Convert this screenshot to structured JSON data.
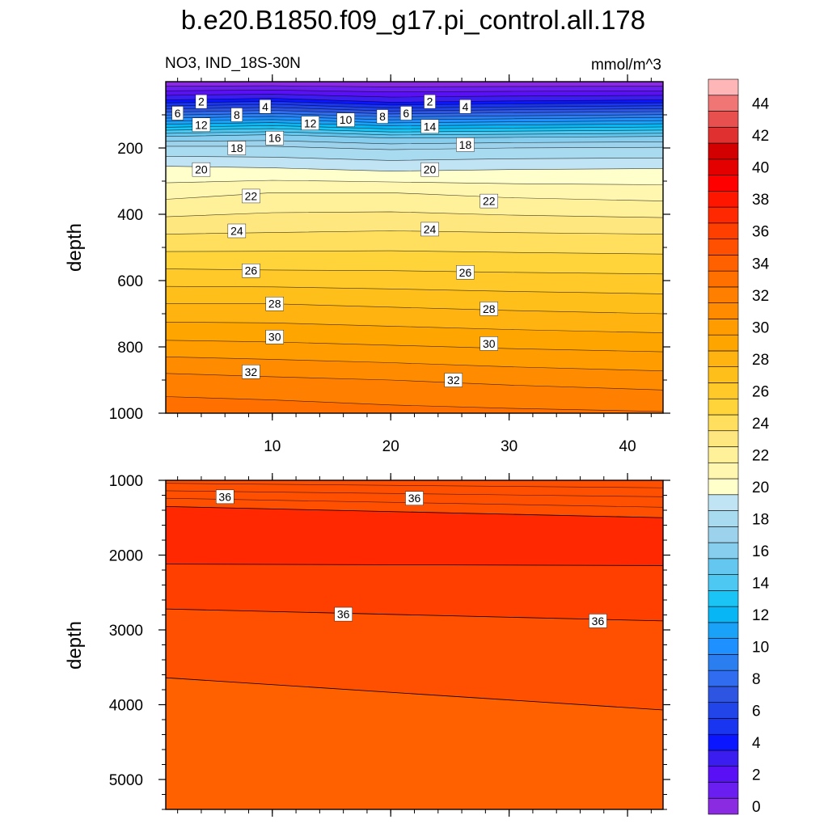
{
  "title": "b.e20.B1850.f09_g17.pi_control.all.178",
  "left_string": "NO3, IND_18S-30N",
  "right_string": "mmol/m^3",
  "colorbar": {
    "tick_labels": [
      "0",
      "2",
      "4",
      "6",
      "8",
      "10",
      "12",
      "14",
      "16",
      "18",
      "20",
      "22",
      "24",
      "26",
      "28",
      "30",
      "32",
      "34",
      "36",
      "38",
      "40",
      "42",
      "44"
    ],
    "colors": [
      "#8a2be2",
      "#6a1ef0",
      "#5a10f5",
      "#3b1df0",
      "#0a16ff",
      "#1a35f0",
      "#2145e8",
      "#2e55e2",
      "#2f6cf0",
      "#2a7ef0",
      "#1e90ff",
      "#1aa2f8",
      "#06b6f5",
      "#1ac4f5",
      "#4cc8f2",
      "#64c7ef",
      "#86cdee",
      "#9cd2ec",
      "#a8daf0",
      "#c0e4f3",
      "#ffffcc",
      "#fff6b0",
      "#fff09a",
      "#ffe780",
      "#ffdf5d",
      "#ffd43a",
      "#ffc92a",
      "#ffbf1a",
      "#ffb310",
      "#ffa500",
      "#ff9c00",
      "#ff8c00",
      "#ff7f00",
      "#ff7000",
      "#ff6000",
      "#ff4f00",
      "#ff3f00",
      "#ff2800",
      "#ff1600",
      "#ff0000",
      "#e50000",
      "#d20000",
      "#e03030",
      "#e85050",
      "#f07575",
      "#ffb6b6"
    ]
  },
  "chart_data": [
    {
      "type": "contour",
      "panel": "upper",
      "variable": "NO3",
      "region": "IND_18S-30N",
      "units": "mmol/m^3",
      "ylabel": "depth",
      "xlim": [
        1,
        43
      ],
      "ylim": [
        1000,
        0
      ],
      "x_ticks": [
        10,
        20,
        30,
        40
      ],
      "y_ticks": [
        200,
        400,
        600,
        800,
        1000
      ],
      "contour_interval": 1,
      "isolines": [
        {
          "level": 4,
          "x": [
            1,
            10,
            20,
            30,
            43
          ],
          "depth": [
            55,
            50,
            62,
            58,
            55
          ]
        },
        {
          "level": 10,
          "x": [
            1,
            10,
            20,
            30,
            43
          ],
          "depth": [
            110,
            105,
            115,
            112,
            108
          ]
        },
        {
          "level": 16,
          "x": [
            1,
            10,
            20,
            30,
            43
          ],
          "depth": [
            165,
            160,
            170,
            168,
            165
          ]
        },
        {
          "level": 18,
          "x": [
            1,
            10,
            20,
            30,
            43
          ],
          "depth": [
            195,
            195,
            205,
            200,
            198
          ]
        },
        {
          "level": 20,
          "x": [
            1,
            10,
            20,
            30,
            43
          ],
          "depth": [
            255,
            260,
            270,
            265,
            262
          ]
        },
        {
          "level": 22,
          "x": [
            1,
            10,
            20,
            30,
            43
          ],
          "depth": [
            355,
            335,
            335,
            350,
            360
          ]
        },
        {
          "level": 24,
          "x": [
            1,
            10,
            20,
            30,
            43
          ],
          "depth": [
            460,
            455,
            450,
            455,
            460
          ]
        },
        {
          "level": 26,
          "x": [
            1,
            10,
            20,
            30,
            43
          ],
          "depth": [
            565,
            568,
            570,
            575,
            580
          ]
        },
        {
          "level": 28,
          "x": [
            1,
            10,
            20,
            30,
            43
          ],
          "depth": [
            670,
            670,
            680,
            690,
            700
          ]
        },
        {
          "level": 30,
          "x": [
            1,
            10,
            20,
            30,
            43
          ],
          "depth": [
            780,
            785,
            795,
            805,
            815
          ]
        },
        {
          "level": 32,
          "x": [
            1,
            10,
            20,
            30,
            43
          ],
          "depth": [
            880,
            890,
            900,
            915,
            930
          ]
        },
        {
          "level": 33,
          "x": [
            1,
            10,
            20,
            30,
            43
          ],
          "depth": [
            950,
            960,
            975,
            985,
            995
          ]
        }
      ],
      "labels": [
        {
          "text": "2",
          "x": 4.0,
          "depth": 60
        },
        {
          "text": "6",
          "x": 2.0,
          "depth": 95
        },
        {
          "text": "4",
          "x": 9.4,
          "depth": 75
        },
        {
          "text": "8",
          "x": 7.0,
          "depth": 100
        },
        {
          "text": "12",
          "x": 4.0,
          "depth": 130
        },
        {
          "text": "12",
          "x": 13.2,
          "depth": 125
        },
        {
          "text": "10",
          "x": 16.2,
          "depth": 115
        },
        {
          "text": "8",
          "x": 19.3,
          "depth": 105
        },
        {
          "text": "6",
          "x": 21.3,
          "depth": 95
        },
        {
          "text": "2",
          "x": 23.3,
          "depth": 60
        },
        {
          "text": "4",
          "x": 26.3,
          "depth": 75
        },
        {
          "text": "14",
          "x": 23.3,
          "depth": 135
        },
        {
          "text": "16",
          "x": 10.2,
          "depth": 170
        },
        {
          "text": "18",
          "x": 7.0,
          "depth": 200
        },
        {
          "text": "18",
          "x": 26.3,
          "depth": 190
        },
        {
          "text": "20",
          "x": 4.0,
          "depth": 265
        },
        {
          "text": "20",
          "x": 23.3,
          "depth": 265
        },
        {
          "text": "22",
          "x": 8.2,
          "depth": 345
        },
        {
          "text": "22",
          "x": 28.3,
          "depth": 360
        },
        {
          "text": "24",
          "x": 7.0,
          "depth": 450
        },
        {
          "text": "24",
          "x": 23.3,
          "depth": 445
        },
        {
          "text": "26",
          "x": 8.2,
          "depth": 570
        },
        {
          "text": "26",
          "x": 26.3,
          "depth": 575
        },
        {
          "text": "28",
          "x": 10.2,
          "depth": 670
        },
        {
          "text": "28",
          "x": 28.3,
          "depth": 685
        },
        {
          "text": "30",
          "x": 10.2,
          "depth": 770
        },
        {
          "text": "30",
          "x": 28.3,
          "depth": 790
        },
        {
          "text": "32",
          "x": 8.2,
          "depth": 875
        },
        {
          "text": "32",
          "x": 25.3,
          "depth": 900
        }
      ]
    },
    {
      "type": "contour",
      "panel": "lower",
      "variable": "NO3",
      "ylabel": "depth",
      "xlim": [
        1,
        43
      ],
      "ylim": [
        5400,
        1000
      ],
      "x_ticks": [
        10,
        20,
        30,
        40
      ],
      "y_ticks": [
        1000,
        2000,
        3000,
        4000,
        5000
      ],
      "bands": [
        {
          "value_range": [
            35,
            36
          ],
          "top_depth": 1000
        },
        {
          "value_range": [
            36,
            37
          ],
          "top_depth": [
            [
              1,
              1350
            ],
            [
              43,
              1500
            ]
          ]
        },
        {
          "value_range": [
            35,
            36
          ],
          "top_depth": [
            [
              1,
              2120
            ],
            [
              43,
              2140
            ]
          ]
        },
        {
          "value_range": [
            34,
            35
          ],
          "top_depth": [
            [
              1,
              2720
            ],
            [
              43,
              2880
            ]
          ]
        },
        {
          "value_range": [
            33,
            34
          ],
          "top_depth": [
            [
              1,
              3640
            ],
            [
              43,
              4070
            ]
          ]
        }
      ],
      "labels": [
        {
          "text": "36",
          "x": 6.0,
          "depth": 1220
        },
        {
          "text": "36",
          "x": 22.0,
          "depth": 1240
        },
        {
          "text": "36",
          "x": 16.0,
          "depth": 2790
        },
        {
          "text": "36",
          "x": 37.5,
          "depth": 2880
        }
      ]
    }
  ]
}
